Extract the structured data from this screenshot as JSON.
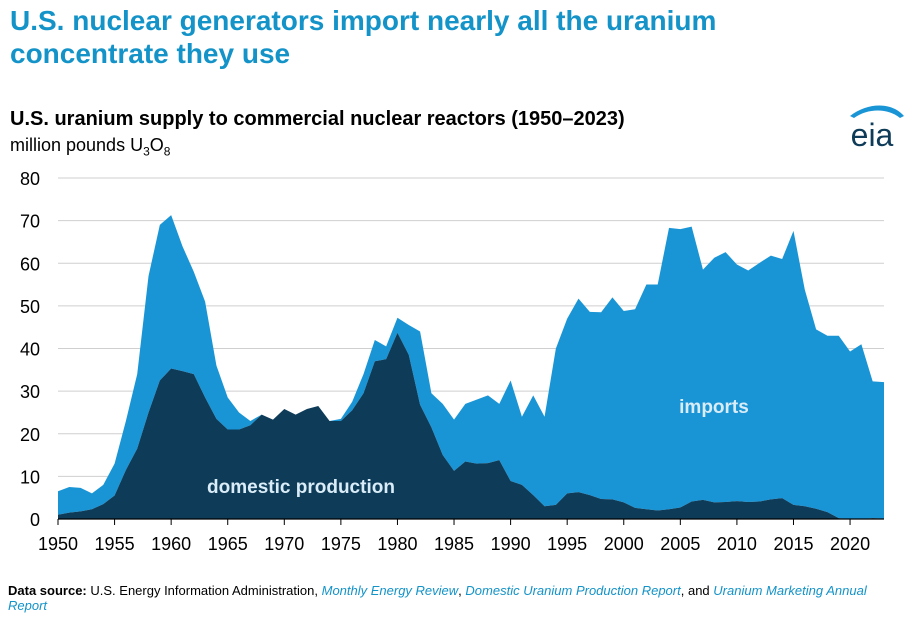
{
  "headline": {
    "line1": "U.S. nuclear generators import nearly all the uranium",
    "line2": "concentrate they use"
  },
  "chart_title": "U.S. uranium supply to commercial nuclear reactors (1950–2023)",
  "chart_subtitle": {
    "text": "million pounds U",
    "sub1": "3",
    "mid": "O",
    "sub2": "8"
  },
  "logo": {
    "text": "eia",
    "icon": "eia-logo-icon"
  },
  "source": {
    "label": "Data source:",
    "prefix": "U.S. Energy Information Administration,",
    "ref1": "Monthly Energy Review",
    "sep1": ",",
    "ref2": "Domestic Uranium Production Report",
    "sep2": ", and",
    "ref3": "Uranium Marketing Annual Report"
  },
  "colors": {
    "headline": "#1393c8",
    "imports": "#1995d6",
    "domestic": "#0d3b58",
    "grid": "#cfcfcf"
  },
  "chart_data": {
    "type": "area",
    "stacked": true,
    "title": "U.S. uranium supply to commercial nuclear reactors (1950–2023)",
    "ylabel": "million pounds U3O8",
    "ylim": [
      0,
      80
    ],
    "yticks": [
      0,
      10,
      20,
      30,
      40,
      50,
      60,
      70,
      80
    ],
    "xlim": [
      1950,
      2023
    ],
    "xticks": [
      1950,
      1955,
      1960,
      1965,
      1970,
      1975,
      1980,
      1985,
      1990,
      1995,
      2000,
      2005,
      2010,
      2015,
      2020
    ],
    "grid": true,
    "x": [
      1950,
      1951,
      1952,
      1953,
      1954,
      1955,
      1956,
      1957,
      1958,
      1959,
      1960,
      1961,
      1962,
      1963,
      1964,
      1965,
      1966,
      1967,
      1968,
      1969,
      1970,
      1971,
      1972,
      1973,
      1974,
      1975,
      1976,
      1977,
      1978,
      1979,
      1980,
      1981,
      1982,
      1983,
      1984,
      1985,
      1986,
      1987,
      1988,
      1989,
      1990,
      1991,
      1992,
      1993,
      1994,
      1995,
      1996,
      1997,
      1998,
      1999,
      2000,
      2001,
      2002,
      2003,
      2004,
      2005,
      2006,
      2007,
      2008,
      2009,
      2010,
      2011,
      2012,
      2013,
      2014,
      2015,
      2016,
      2017,
      2018,
      2019,
      2020,
      2021,
      2022,
      2023
    ],
    "series": [
      {
        "name": "domestic production",
        "values": [
          1.0,
          1.5,
          1.8,
          2.3,
          3.5,
          5.5,
          11.5,
          16.5,
          25.0,
          32.5,
          35.3,
          34.7,
          34.0,
          28.5,
          23.5,
          21.0,
          21.0,
          22.0,
          24.5,
          23.3,
          25.8,
          24.5,
          25.8,
          26.5,
          23.0,
          23.0,
          25.5,
          29.5,
          37.0,
          37.5,
          43.7,
          38.5,
          26.8,
          21.5,
          15.0,
          11.3,
          13.5,
          13.0,
          13.1,
          13.8,
          8.9,
          8.0,
          5.6,
          3.0,
          3.3,
          6.0,
          6.3,
          5.6,
          4.7,
          4.6,
          3.9,
          2.6,
          2.3,
          2.0,
          2.3,
          2.7,
          4.1,
          4.5,
          3.9,
          4.0,
          4.2,
          4.0,
          4.1,
          4.6,
          4.9,
          3.3,
          3.0,
          2.4,
          1.6,
          0.2,
          0.0,
          0.0,
          0.2,
          0.1
        ]
      },
      {
        "name": "imports",
        "values": [
          5.5,
          6.0,
          5.5,
          3.7,
          4.5,
          7.5,
          11.5,
          17.5,
          32.0,
          36.5,
          36.0,
          29.3,
          24.0,
          22.5,
          12.5,
          7.5,
          4.0,
          1.0,
          0.0,
          0.0,
          0.0,
          0.0,
          0.0,
          0.0,
          0.0,
          0.5,
          2.0,
          4.5,
          5.0,
          3.0,
          3.5,
          7.0,
          17.2,
          8.0,
          12.0,
          12.0,
          13.5,
          15.0,
          15.9,
          13.2,
          23.6,
          16.0,
          23.4,
          21.0,
          36.7,
          41.0,
          45.4,
          43.0,
          43.8,
          47.4,
          44.9,
          46.6,
          52.7,
          53.0,
          66.0,
          65.3,
          64.5,
          54.0,
          57.4,
          58.6,
          55.5,
          54.3,
          56.0,
          57.2,
          56.1,
          64.3,
          50.8,
          42.1,
          41.4,
          42.8,
          39.3,
          41.0,
          32.1,
          32.0
        ]
      }
    ],
    "annotations": [
      "imports",
      "domestic production"
    ]
  }
}
